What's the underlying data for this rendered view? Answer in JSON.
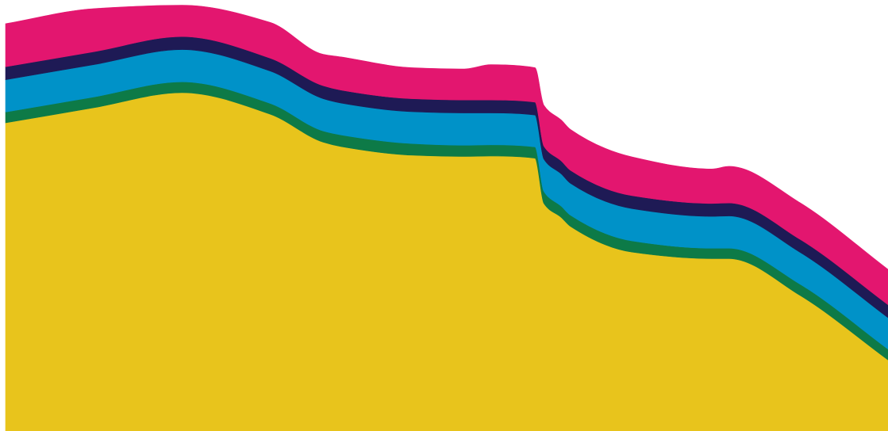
{
  "chart_data": {
    "type": "area",
    "stacked": true,
    "curve": "smooth",
    "axes_visible": false,
    "grid": false,
    "legend": "none",
    "title": "",
    "xlabel": "",
    "ylabel": "",
    "x": [
      0,
      10,
      20,
      30,
      36,
      38,
      46,
      52,
      55,
      60,
      61,
      63,
      64,
      71,
      80,
      82,
      90,
      100
    ],
    "ylim": [
      0,
      100
    ],
    "series": [
      {
        "color": "#e8c41c",
        "values": [
          71.5,
          75.0,
          78.5,
          73.5,
          67.0,
          66.0,
          64.0,
          63.7,
          63.8,
          63.3,
          52.8,
          49.5,
          47.5,
          41.5,
          40.0,
          40.0,
          31.5,
          16.5
        ]
      },
      {
        "color": "#0d7a47",
        "values": [
          2.5,
          2.5,
          2.5,
          2.5,
          2.6,
          2.7,
          2.7,
          2.6,
          2.6,
          2.6,
          2.8,
          2.6,
          2.6,
          2.6,
          2.4,
          2.4,
          2.6,
          2.5
        ]
      },
      {
        "color": "#0092c8",
        "values": [
          7.5,
          7.5,
          7.5,
          7.5,
          7.5,
          7.4,
          7.4,
          7.5,
          7.4,
          7.4,
          7.5,
          7.5,
          7.4,
          7.5,
          7.4,
          7.5,
          7.4,
          7.3
        ]
      },
      {
        "color": "#1e1a55",
        "values": [
          3.0,
          3.0,
          3.0,
          3.0,
          3.0,
          3.0,
          3.0,
          3.0,
          3.0,
          3.0,
          3.0,
          3.0,
          3.0,
          3.0,
          3.0,
          3.0,
          3.0,
          3.0
        ]
      },
      {
        "color": "#e3166f",
        "values": [
          10.0,
          10.0,
          7.3,
          8.3,
          7.3,
          7.7,
          7.2,
          7.2,
          8.2,
          8.0,
          9.5,
          9.5,
          9.5,
          9.0,
          8.0,
          8.5,
          8.5,
          8.2
        ]
      }
    ]
  }
}
